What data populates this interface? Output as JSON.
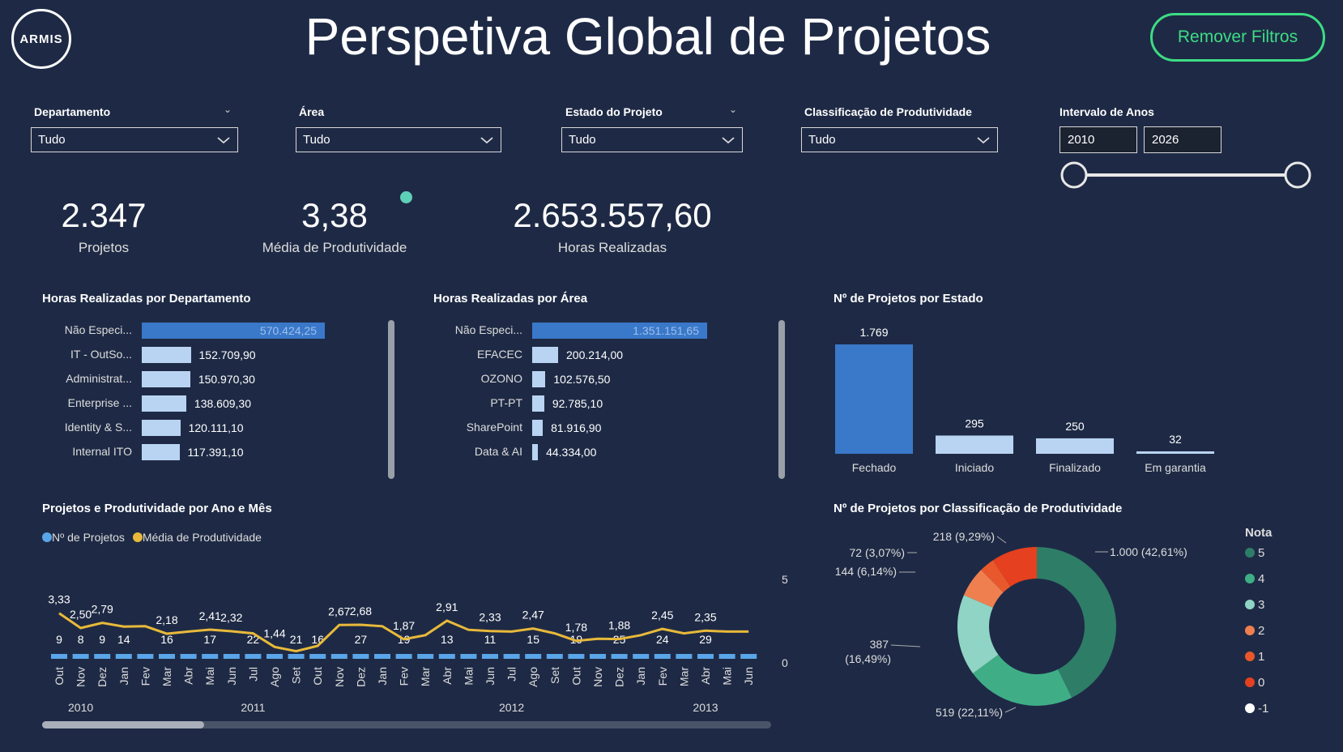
{
  "header": {
    "logo_text": "ARMIS",
    "title": "Perspetiva Global de Projetos",
    "remove_filters_label": "Remover Filtros"
  },
  "filters": {
    "departamento": {
      "label": "Departamento",
      "value": "Tudo"
    },
    "area": {
      "label": "Área",
      "value": "Tudo"
    },
    "estado": {
      "label": "Estado do Projeto",
      "value": "Tudo"
    },
    "classificacao": {
      "label": "Classificação de Produtividade",
      "value": "Tudo"
    },
    "intervalo": {
      "label": "Intervalo de Anos",
      "from": "2010",
      "to": "2026"
    }
  },
  "kpis": {
    "projetos": {
      "value": "2.347",
      "label": "Projetos"
    },
    "produtividade": {
      "value": "3,38",
      "label": "Média de Produtividade"
    },
    "horas": {
      "value": "2.653.557,60",
      "label": "Horas Realizadas"
    }
  },
  "colors": {
    "background": "#1e2a45",
    "bar_primary": "#3a78c9",
    "bar_light": "#b9d4f2",
    "line_yellow": "#e8b93a",
    "accent_green": "#3ddc84"
  },
  "charts": {
    "departamento": {
      "title": "Horas Realizadas por Departamento",
      "chart_data": {
        "type": "bar",
        "categories": [
          "Não Especi...",
          "IT - OutSo...",
          "Administrat...",
          "Enterprise ...",
          "Identity & S...",
          "Internal ITO"
        ],
        "values": [
          570424.25,
          152709.9,
          150970.3,
          138609.3,
          120111.1,
          117391.1
        ],
        "labels": [
          "570.424,25",
          "152.709,90",
          "150.970,30",
          "138.609,30",
          "120.111,10",
          "117.391,10"
        ]
      }
    },
    "area": {
      "title": "Horas Realizadas por Área",
      "chart_data": {
        "type": "bar",
        "categories": [
          "Não Especi...",
          "EFACEC",
          "OZONO",
          "PT-PT",
          "SharePoint",
          "Data & AI"
        ],
        "values": [
          1351151.65,
          200214.0,
          102576.5,
          92785.1,
          81916.9,
          44334.0
        ],
        "labels": [
          "1.351.151,65",
          "200.214,00",
          "102.576,50",
          "92.785,10",
          "81.916,90",
          "44.334,00"
        ]
      }
    },
    "estado": {
      "title": "Nº de Projetos por Estado",
      "chart_data": {
        "type": "bar",
        "categories": [
          "Fechado",
          "Iniciado",
          "Finalizado",
          "Em garantia"
        ],
        "values": [
          1769,
          295,
          250,
          32
        ],
        "labels": [
          "1.769",
          "295",
          "250",
          "32"
        ]
      }
    },
    "anomes": {
      "title": "Projetos e Produtividade por Ano e Mês",
      "legend": [
        "Nº de Projetos",
        "Média de Produtividade"
      ],
      "right_axis_ticks": [
        "5",
        "0"
      ],
      "years": [
        {
          "label": "2010",
          "index": 1
        },
        {
          "label": "2011",
          "index": 9
        },
        {
          "label": "2012",
          "index": 21
        },
        {
          "label": "2013",
          "index": 30
        }
      ],
      "chart_data": {
        "type": "line",
        "categories": [
          "Out",
          "Nov",
          "Dez",
          "Jan",
          "Fev",
          "Mar",
          "Abr",
          "Mai",
          "Jun",
          "Jul",
          "Ago",
          "Set",
          "Out",
          "Nov",
          "Dez",
          "Jan",
          "Fev",
          "Mar",
          "Abr",
          "Mai",
          "Jun",
          "Jul",
          "Ago",
          "Set",
          "Out",
          "Nov",
          "Dez",
          "Jan",
          "Fev",
          "Mar",
          "Abr",
          "Mai",
          "Jun"
        ],
        "series": [
          {
            "name": "Nº de Projetos",
            "values": [
              9,
              8,
              9,
              14,
              null,
              16,
              null,
              17,
              null,
              22,
              null,
              21,
              16,
              null,
              27,
              null,
              19,
              null,
              13,
              null,
              11,
              null,
              15,
              null,
              19,
              null,
              25,
              null,
              24,
              null,
              29,
              null,
              null
            ]
          },
          {
            "name": "Média de Produtividade",
            "values": [
              3.33,
              2.5,
              2.79,
              2.58,
              2.6,
              2.18,
              2.3,
              2.41,
              2.32,
              2.2,
              1.44,
              1.2,
              1.5,
              2.67,
              2.68,
              2.6,
              1.87,
              2.1,
              2.91,
              2.4,
              2.33,
              2.3,
              2.47,
              2.2,
              1.78,
              1.9,
              1.88,
              2.1,
              2.45,
              2.2,
              2.35,
              2.3,
              2.3
            ]
          }
        ],
        "point_labels": [
          {
            "i": 0,
            "t": "3,33"
          },
          {
            "i": 1,
            "t": "2,50"
          },
          {
            "i": 2,
            "t": "2,79"
          },
          {
            "i": 5,
            "t": "2,18"
          },
          {
            "i": 7,
            "t": "2,41"
          },
          {
            "i": 8,
            "t": "2,32"
          },
          {
            "i": 10,
            "t": "1,44"
          },
          {
            "i": 13,
            "t": "2,67"
          },
          {
            "i": 14,
            "t": "2,68"
          },
          {
            "i": 16,
            "t": "1,87"
          },
          {
            "i": 18,
            "t": "2,91"
          },
          {
            "i": 20,
            "t": "2,33"
          },
          {
            "i": 22,
            "t": "2,47"
          },
          {
            "i": 24,
            "t": "1,78"
          },
          {
            "i": 26,
            "t": "1,88"
          },
          {
            "i": 28,
            "t": "2,45"
          },
          {
            "i": 30,
            "t": "2,35"
          }
        ],
        "ylim_right": [
          0,
          5
        ]
      }
    },
    "classificacao": {
      "title": "Nº de Projetos por Classificação de Produtividade",
      "legend_title": "Nota",
      "chart_data": {
        "type": "pie",
        "categories": [
          "5",
          "4",
          "3",
          "2",
          "1",
          "0",
          "-1"
        ],
        "values": [
          1000,
          519,
          387,
          144,
          72,
          218,
          0
        ],
        "labels": [
          "1.000 (42,61%)",
          "519 (22,11%)",
          "387 (16,49%)",
          "144 (6,14%)",
          "72 (3,07%)",
          "218 (9,29%)",
          ""
        ],
        "colors": [
          "#2e7d67",
          "#3fae86",
          "#8fd4c4",
          "#f07f50",
          "#e8582c",
          "#e5401f",
          "#ffffff"
        ]
      }
    }
  }
}
